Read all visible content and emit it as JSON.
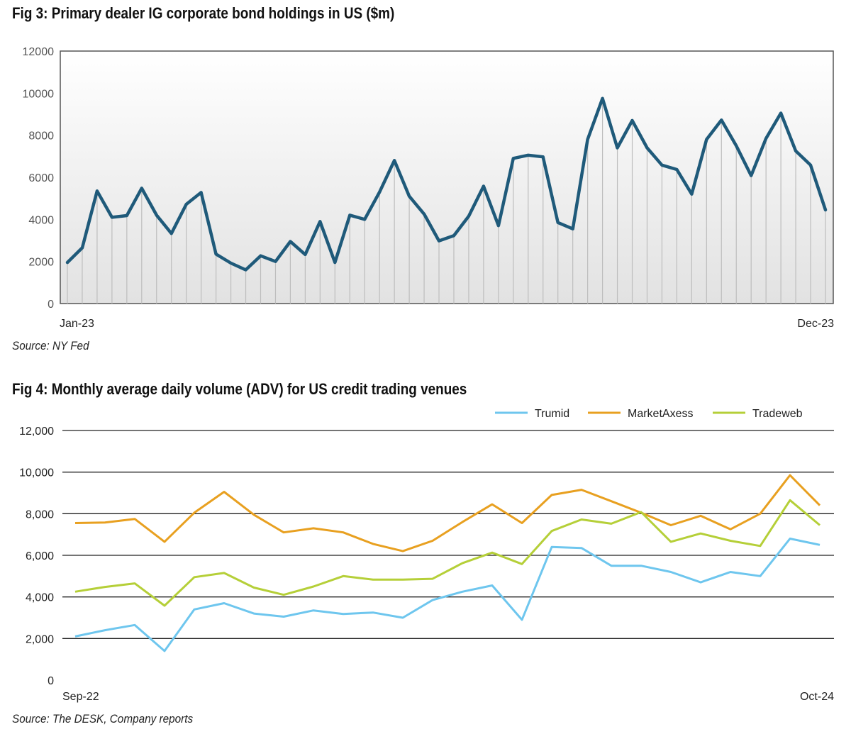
{
  "fig3": {
    "title": "Fig 3: Primary dealer IG corporate bond holdings in US ($m)",
    "source": "Source: NY Fed",
    "colors": {
      "line": "#1f5a7a",
      "drop": "#bdbdbd",
      "frame": "#555555"
    }
  },
  "fig4": {
    "title": "Fig 4: Monthly average daily volume (ADV) for US credit trading venues",
    "source": "Source: The DESK, Company reports",
    "colors": {
      "grid": "#222222"
    }
  },
  "chart_data": [
    {
      "type": "line",
      "title": "Fig 3: Primary dealer IG corporate bond holdings in US ($m)",
      "x_start_label": "Jan-23",
      "x_end_label": "Dec-23",
      "ylim": [
        0,
        12000
      ],
      "yticks": [
        "0",
        "2000",
        "4000",
        "6000",
        "8000",
        "10000",
        "12000"
      ],
      "grid": false,
      "series": [
        {
          "values": [
            1950,
            2650,
            5350,
            4100,
            4180,
            5480,
            4200,
            3330,
            4720,
            5280,
            2350,
            1920,
            1600,
            2270,
            2000,
            2950,
            2330,
            3900,
            1950,
            4200,
            4000,
            5300,
            6800,
            5100,
            4250,
            2980,
            3230,
            4150,
            5580,
            3700,
            6900,
            7050,
            6970,
            3850,
            3550,
            7800,
            9750,
            7400,
            8700,
            7400,
            6580,
            6370,
            5200,
            7800,
            8720,
            7500,
            6080,
            7850,
            9050,
            7250,
            6580,
            4450
          ]
        }
      ]
    },
    {
      "type": "line",
      "title": "Fig 4: Monthly average daily volume (ADV) for US credit trading venues",
      "x_start_label": "Sep-22",
      "x_end_label": "Oct-24",
      "ylim": [
        0,
        12000
      ],
      "yticks": [
        "0",
        "2,000",
        "4,000",
        "6,000",
        "8,000",
        "10,000",
        "12,000"
      ],
      "grid": true,
      "legend_position": "top-right",
      "series": [
        {
          "name": "Trumid",
          "color": "#6ec6ee",
          "values": [
            2100,
            2400,
            2650,
            1400,
            3400,
            3700,
            3200,
            3050,
            3350,
            3180,
            3250,
            3000,
            3850,
            4250,
            4550,
            2900,
            6400,
            6350,
            5500,
            5500,
            5200,
            4700,
            5200,
            5000,
            6800,
            6500
          ]
        },
        {
          "name": "MarketAxess",
          "color": "#e8a020",
          "values": [
            7550,
            7580,
            7750,
            6650,
            8050,
            9050,
            7950,
            7100,
            7300,
            7100,
            6550,
            6200,
            6700,
            7600,
            8450,
            7550,
            8900,
            9150,
            8600,
            8050,
            7450,
            7900,
            7250,
            8000,
            9850,
            8400
          ]
        },
        {
          "name": "Tradeweb",
          "color": "#b5cf38",
          "values": [
            4250,
            4480,
            4650,
            3580,
            4950,
            5150,
            4450,
            4100,
            4500,
            5000,
            4830,
            4830,
            4870,
            5620,
            6130,
            5580,
            7170,
            7720,
            7520,
            8080,
            6650,
            7050,
            6700,
            6450,
            8650,
            7450
          ]
        }
      ]
    }
  ]
}
